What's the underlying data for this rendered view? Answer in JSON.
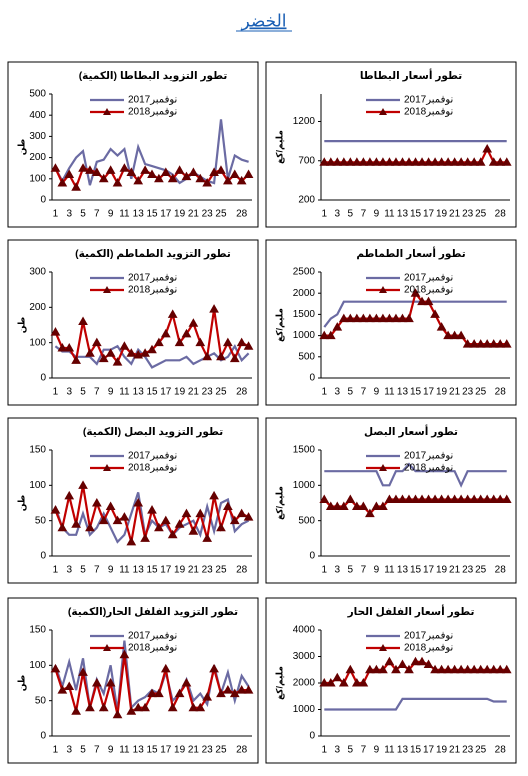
{
  "title": "الخضر",
  "chart_data": [
    {
      "type": "line",
      "title": "تطور التزويد البطاطا (الكمية)",
      "y_label": "طن",
      "grid": false,
      "categories": [
        1,
        null,
        3,
        null,
        5,
        null,
        7,
        null,
        9,
        null,
        11,
        null,
        13,
        null,
        15,
        null,
        17,
        null,
        19,
        null,
        21,
        null,
        23,
        null,
        25,
        null,
        null,
        28,
        null
      ],
      "ylim": [
        0,
        500
      ],
      "yticks": [
        0,
        100,
        200,
        300,
        400,
        500
      ],
      "series": [
        {
          "name": "نوفمبر2017",
          "color": "#6b6ba3",
          "values": [
            150,
            90,
            150,
            200,
            230,
            70,
            180,
            190,
            240,
            210,
            240,
            100,
            250,
            170,
            160,
            150,
            140,
            120,
            80,
            100,
            130,
            110,
            90,
            80,
            380,
            100,
            210,
            190,
            180
          ]
        },
        {
          "name": "نوفمبر2018",
          "color": "#c00000",
          "marker": "triangle",
          "values": [
            150,
            80,
            120,
            60,
            150,
            140,
            130,
            100,
            140,
            80,
            150,
            130,
            90,
            140,
            120,
            100,
            130,
            100,
            140,
            110,
            130,
            100,
            80,
            130,
            140,
            90,
            120,
            90,
            120
          ]
        }
      ]
    },
    {
      "type": "line",
      "title": "تطور أسعار البطاطا",
      "y_label": "مليم/كغ",
      "grid": false,
      "categories": [
        1,
        null,
        3,
        null,
        5,
        null,
        7,
        null,
        9,
        null,
        11,
        null,
        13,
        null,
        15,
        null,
        17,
        null,
        19,
        null,
        21,
        null,
        23,
        null,
        25,
        null,
        null,
        28,
        null
      ],
      "ylim": [
        200,
        1550
      ],
      "yticks": [
        200,
        700,
        1200
      ],
      "series": [
        {
          "name": "نوفمبر2017",
          "color": "#6b6ba3",
          "values": [
            950,
            950,
            950,
            950,
            950,
            950,
            950,
            950,
            950,
            950,
            950,
            950,
            950,
            950,
            950,
            950,
            950,
            950,
            950,
            950,
            950,
            950,
            950,
            950,
            950,
            950,
            950,
            950,
            950
          ]
        },
        {
          "name": "نوفمبر2018",
          "color": "#c00000",
          "marker": "triangle",
          "values": [
            680,
            680,
            680,
            680,
            680,
            680,
            680,
            680,
            680,
            680,
            680,
            680,
            680,
            680,
            680,
            680,
            680,
            680,
            680,
            680,
            680,
            680,
            680,
            680,
            680,
            850,
            680,
            680,
            680
          ]
        }
      ]
    },
    {
      "type": "line",
      "title": "تطور التزويد الطماطم (الكمية)",
      "y_label": "طن",
      "grid": false,
      "categories": [
        1,
        null,
        3,
        null,
        5,
        null,
        7,
        null,
        9,
        null,
        11,
        null,
        13,
        null,
        15,
        null,
        17,
        null,
        19,
        null,
        21,
        null,
        23,
        null,
        25,
        null,
        null,
        28,
        null
      ],
      "ylim": [
        0,
        300
      ],
      "yticks": [
        0,
        100,
        200,
        300
      ],
      "series": [
        {
          "name": "نوفمبر2017",
          "color": "#6b6ba3",
          "values": [
            90,
            75,
            75,
            60,
            60,
            60,
            40,
            80,
            80,
            90,
            60,
            40,
            80,
            60,
            30,
            40,
            50,
            50,
            50,
            60,
            40,
            50,
            60,
            70,
            50,
            60,
            90,
            50,
            70
          ]
        },
        {
          "name": "نوفمبر2018",
          "color": "#c00000",
          "marker": "triangle",
          "values": [
            130,
            85,
            85,
            50,
            160,
            70,
            100,
            55,
            70,
            45,
            90,
            70,
            65,
            70,
            80,
            100,
            125,
            180,
            100,
            125,
            155,
            100,
            60,
            195,
            60,
            100,
            55,
            100,
            90
          ]
        }
      ]
    },
    {
      "type": "line",
      "title": "تطور أسعار الطماطم",
      "y_label": "مليم/كغ",
      "grid": false,
      "categories": [
        1,
        null,
        3,
        null,
        5,
        null,
        7,
        null,
        9,
        null,
        11,
        null,
        13,
        null,
        15,
        null,
        17,
        null,
        19,
        null,
        21,
        null,
        23,
        null,
        25,
        null,
        null,
        28,
        null
      ],
      "ylim": [
        0,
        2500
      ],
      "yticks": [
        0,
        500,
        1000,
        1500,
        2000,
        2500
      ],
      "series": [
        {
          "name": "نوفمبر2017",
          "color": "#6b6ba3",
          "values": [
            1200,
            1400,
            1500,
            1800,
            1800,
            1800,
            1800,
            1800,
            1800,
            1800,
            1800,
            1800,
            1800,
            1800,
            1800,
            1800,
            1800,
            1800,
            1800,
            1800,
            1800,
            1800,
            1800,
            1800,
            1800,
            1800,
            1800,
            1800,
            1800
          ]
        },
        {
          "name": "نوفمبر2018",
          "color": "#c00000",
          "marker": "triangle",
          "values": [
            1000,
            1000,
            1200,
            1400,
            1400,
            1400,
            1400,
            1400,
            1400,
            1400,
            1400,
            1400,
            1400,
            1400,
            2000,
            1800,
            1800,
            1500,
            1200,
            1000,
            1000,
            1000,
            800,
            800,
            800,
            800,
            800,
            800,
            800
          ]
        }
      ]
    },
    {
      "type": "line",
      "title": "تطور التزويد البصل (الكمية)",
      "y_label": "طن",
      "grid": false,
      "categories": [
        1,
        null,
        3,
        null,
        5,
        null,
        7,
        null,
        9,
        null,
        11,
        null,
        13,
        null,
        15,
        null,
        17,
        null,
        19,
        null,
        21,
        null,
        23,
        null,
        25,
        null,
        null,
        28,
        null
      ],
      "ylim": [
        0,
        150
      ],
      "yticks": [
        0,
        50,
        100,
        150
      ],
      "series": [
        {
          "name": "نوفمبر2017",
          "color": "#6b6ba3",
          "values": [
            70,
            40,
            30,
            30,
            60,
            30,
            40,
            60,
            40,
            20,
            30,
            60,
            90,
            30,
            50,
            40,
            45,
            30,
            40,
            45,
            50,
            30,
            70,
            35,
            75,
            80,
            35,
            45,
            50
          ]
        },
        {
          "name": "نوفمبر2018",
          "color": "#c00000",
          "marker": "triangle",
          "values": [
            65,
            40,
            85,
            45,
            100,
            40,
            75,
            50,
            70,
            50,
            55,
            20,
            75,
            25,
            65,
            40,
            50,
            30,
            45,
            60,
            35,
            60,
            25,
            85,
            40,
            70,
            50,
            60,
            55
          ]
        }
      ]
    },
    {
      "type": "line",
      "title": "تطور أسعار البصل",
      "y_label": "مليم/كغ",
      "grid": false,
      "categories": [
        1,
        null,
        3,
        null,
        5,
        null,
        7,
        null,
        9,
        null,
        11,
        null,
        13,
        null,
        15,
        null,
        17,
        null,
        19,
        null,
        21,
        null,
        23,
        null,
        25,
        null,
        null,
        28,
        null
      ],
      "ylim": [
        0,
        1500
      ],
      "yticks": [
        0,
        500,
        1000,
        1500
      ],
      "series": [
        {
          "name": "نوفمبر2017",
          "color": "#6b6ba3",
          "values": [
            1200,
            1200,
            1200,
            1200,
            1200,
            1200,
            1200,
            1200,
            1200,
            1000,
            1000,
            1200,
            1200,
            1300,
            1200,
            1200,
            1200,
            1200,
            1200,
            1200,
            1200,
            1000,
            1200,
            1200,
            1200,
            1200,
            1200,
            1200,
            1200
          ]
        },
        {
          "name": "نوفمبر2018",
          "color": "#c00000",
          "marker": "triangle",
          "values": [
            800,
            700,
            700,
            700,
            800,
            700,
            700,
            600,
            700,
            700,
            800,
            800,
            800,
            800,
            800,
            800,
            800,
            800,
            800,
            800,
            800,
            800,
            800,
            800,
            800,
            800,
            800,
            800,
            800
          ]
        }
      ]
    },
    {
      "type": "line",
      "title": "تطور التزويد الفلفل الحار(الكمية)",
      "y_label": "طن",
      "grid": false,
      "categories": [
        1,
        null,
        3,
        null,
        5,
        null,
        7,
        null,
        9,
        null,
        11,
        null,
        13,
        null,
        15,
        null,
        17,
        null,
        19,
        null,
        21,
        null,
        23,
        null,
        25,
        null,
        null,
        28,
        null
      ],
      "ylim": [
        0,
        150
      ],
      "yticks": [
        0,
        50,
        100,
        150
      ],
      "series": [
        {
          "name": "نوفمبر2017",
          "color": "#6b6ba3",
          "values": [
            100,
            70,
            105,
            65,
            110,
            40,
            80,
            60,
            100,
            35,
            135,
            40,
            50,
            55,
            65,
            60,
            90,
            50,
            60,
            80,
            50,
            60,
            45,
            100,
            60,
            90,
            50,
            85,
            70
          ]
        },
        {
          "name": "نوفمبر2018",
          "color": "#c00000",
          "marker": "triangle",
          "values": [
            95,
            65,
            70,
            35,
            90,
            40,
            75,
            40,
            75,
            30,
            115,
            35,
            40,
            40,
            60,
            60,
            95,
            40,
            60,
            75,
            40,
            40,
            55,
            95,
            60,
            65,
            60,
            65,
            65
          ]
        }
      ]
    },
    {
      "type": "line",
      "title": "تطور أسعار الفلفل الحار",
      "y_label": "مليم/كغ",
      "grid": false,
      "categories": [
        1,
        null,
        3,
        null,
        5,
        null,
        7,
        null,
        9,
        null,
        11,
        null,
        13,
        null,
        15,
        null,
        17,
        null,
        19,
        null,
        21,
        null,
        23,
        null,
        25,
        null,
        null,
        28,
        null
      ],
      "ylim": [
        0,
        4000
      ],
      "yticks": [
        0,
        1000,
        2000,
        3000,
        4000
      ],
      "series": [
        {
          "name": "نوفمبر2017",
          "color": "#6b6ba3",
          "values": [
            1000,
            1000,
            1000,
            1000,
            1000,
            1000,
            1000,
            1000,
            1000,
            1000,
            1000,
            1000,
            1400,
            1400,
            1400,
            1400,
            1400,
            1400,
            1400,
            1400,
            1400,
            1400,
            1400,
            1400,
            1400,
            1400,
            1300,
            1300,
            1300
          ]
        },
        {
          "name": "نوفمبر2018",
          "color": "#c00000",
          "marker": "triangle",
          "values": [
            2000,
            2000,
            2200,
            2000,
            2500,
            2000,
            2000,
            2500,
            2500,
            2500,
            2800,
            2500,
            2700,
            2500,
            2800,
            2800,
            2700,
            2500,
            2500,
            2500,
            2500,
            2500,
            2500,
            2500,
            2500,
            2500,
            2500,
            2500,
            2500
          ]
        }
      ]
    }
  ]
}
